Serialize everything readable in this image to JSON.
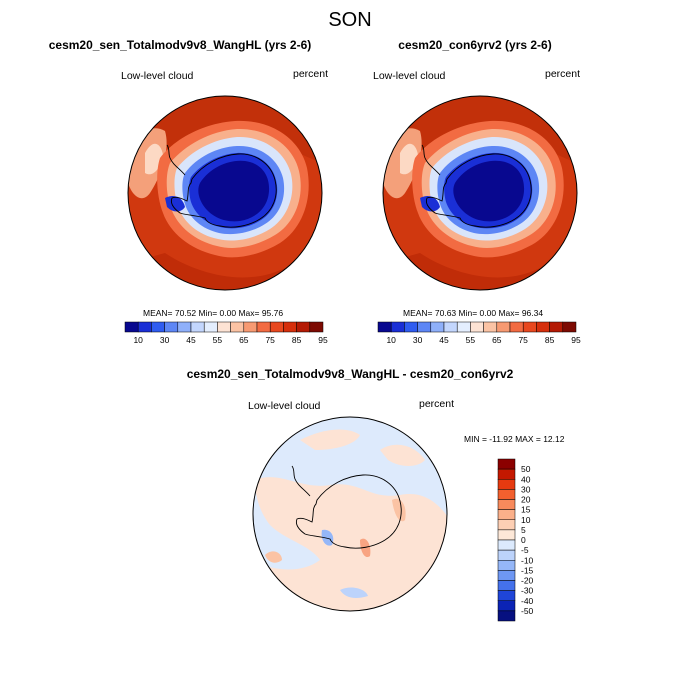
{
  "title": "SON",
  "panels": [
    {
      "title": "cesm20_sen_Totalmodv9v8_WangHL (yrs 2-6)",
      "left_label": "Low-level cloud",
      "right_label": "percent",
      "stats": "MEAN=  70.52  Min=   0.00  Max=  95.76"
    },
    {
      "title": "cesm20_con6yrv2 (yrs 2-6)",
      "left_label": "Low-level cloud",
      "right_label": "percent",
      "stats": "MEAN=  70.63  Min=   0.00  Max=  96.34"
    },
    {
      "title": "cesm20_sen_Totalmodv9v8_WangHL - cesm20_con6yrv2",
      "left_label": "Low-level cloud",
      "right_label": "percent",
      "stats": "MIN = -11.92 MAX =  12.12"
    }
  ],
  "colorbar_top": {
    "labels": [
      "10",
      "30",
      "45",
      "55",
      "65",
      "75",
      "85",
      "95"
    ],
    "colors": [
      "#08088f",
      "#1a2fd6",
      "#2f5cf0",
      "#5d86f5",
      "#8fb0fa",
      "#c3d6fd",
      "#e4eefe",
      "#fde3d4",
      "#fbc3a4",
      "#f79a72",
      "#f26b42",
      "#e8481f",
      "#d62f0c",
      "#b41a04",
      "#7d0a02"
    ]
  },
  "colorbar_diff": {
    "labels": [
      "50",
      "40",
      "30",
      "20",
      "15",
      "10",
      "5",
      "0",
      "-5",
      "-10",
      "-15",
      "-20",
      "-30",
      "-40",
      "-50"
    ],
    "colors": [
      "#8b0000",
      "#c41800",
      "#e63a10",
      "#f2602e",
      "#f88a5c",
      "#fbb08a",
      "#fdcfb4",
      "#fde8d8",
      "#dceafd",
      "#bcd3fb",
      "#95b7f8",
      "#6e97f3",
      "#4471eb",
      "#1f45d8",
      "#0b23b5",
      "#061080"
    ]
  }
}
